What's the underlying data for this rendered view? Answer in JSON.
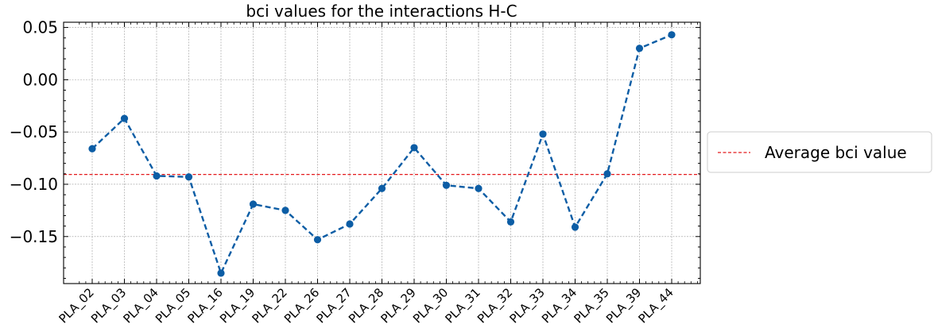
{
  "chart_data": {
    "type": "line",
    "title": "bci values for the interactions H-C",
    "xlabel": "",
    "ylabel": "",
    "categories": [
      "PLA_02",
      "PLA_03",
      "PLA_04",
      "PLA_05",
      "PLA_16",
      "PLA_19",
      "PLA_22",
      "PLA_26",
      "PLA_27",
      "PLA_28",
      "PLA_29",
      "PLA_30",
      "PLA_31",
      "PLA_32",
      "PLA_33",
      "PLA_34",
      "PLA_35",
      "PLA_39",
      "PLA_44"
    ],
    "series": [
      {
        "values": [
          -0.066,
          -0.037,
          -0.092,
          -0.093,
          -0.185,
          -0.119,
          -0.125,
          -0.153,
          -0.138,
          -0.104,
          -0.065,
          -0.101,
          -0.104,
          -0.136,
          -0.052,
          -0.141,
          -0.09,
          0.03,
          0.043
        ],
        "color": "#0C5DA5",
        "style": "dashed",
        "marker": "circle"
      }
    ],
    "reference_line": {
      "value": -0.0906,
      "label": "Average bci value",
      "color": "#e41a1c",
      "style": "dashed"
    },
    "ylim": [
      -0.195,
      0.055
    ],
    "yticks": [
      "0.05",
      "0.00",
      "−0.05",
      "−0.10",
      "−0.15"
    ],
    "grid": true,
    "legend": "right"
  }
}
